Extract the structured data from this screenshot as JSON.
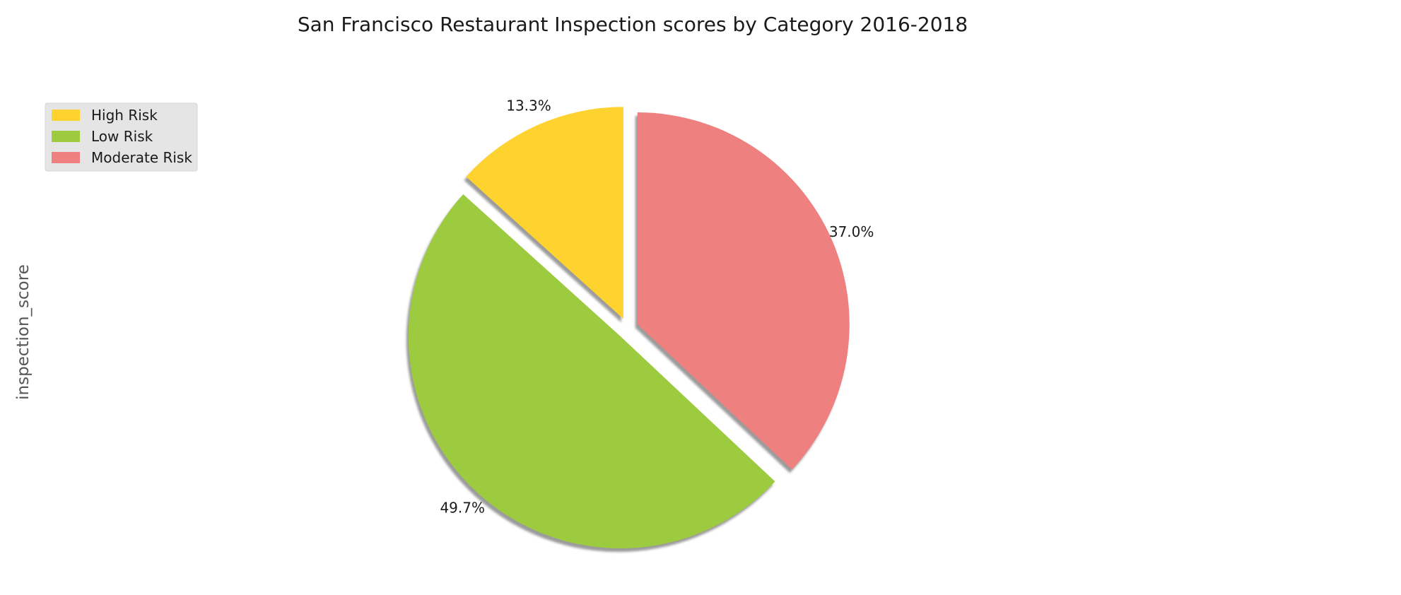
{
  "chart_data": {
    "type": "pie",
    "title": "San Francisco Restaurant Inspection scores by Category 2016-2018",
    "ylabel": "inspection_score",
    "categories": [
      "High Risk",
      "Low Risk",
      "Moderate Risk"
    ],
    "values": [
      13.3,
      49.7,
      37.0
    ],
    "value_labels": [
      "13.3%",
      "49.7%",
      "37.0%"
    ],
    "colors": [
      "#fed330",
      "#9dcb40",
      "#ee8180"
    ],
    "start_angle_deg": 90,
    "direction": "counterclockwise",
    "exploded": true,
    "shadow": true,
    "legend_position": "upper-left"
  }
}
